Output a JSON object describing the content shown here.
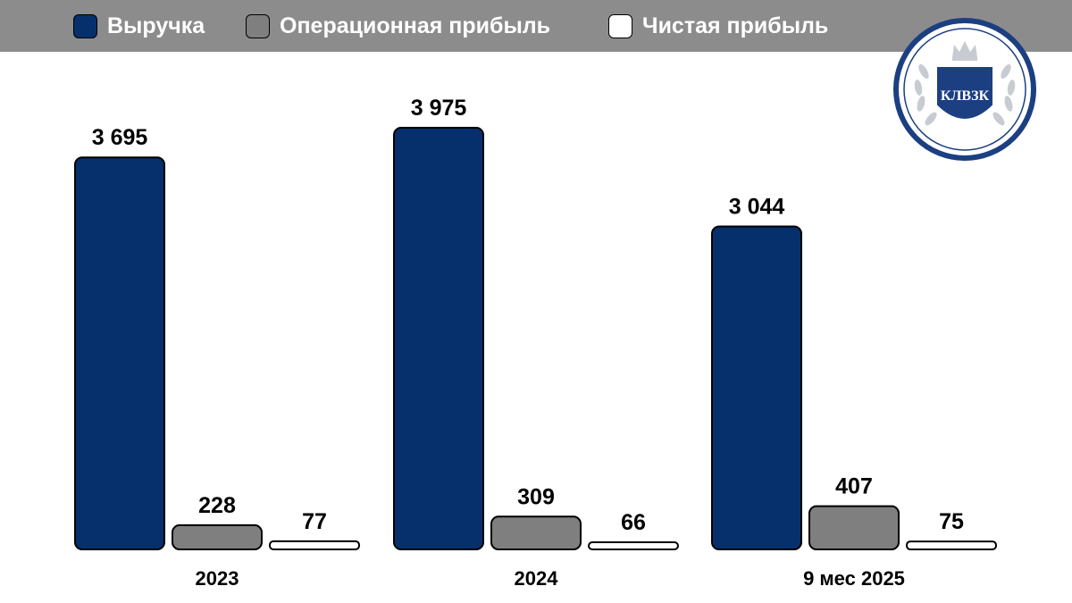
{
  "colors": {
    "legend_bar": "#8c8c8c",
    "revenue": "#06306b",
    "operating": "#7f7f7f",
    "net": "#ffffff",
    "logo_blue": "#1c3f82"
  },
  "logo": {
    "text": "КЛВЗК",
    "icon": "crown-laurel-shield-icon"
  },
  "chart_data": {
    "type": "bar",
    "title": "",
    "xlabel": "",
    "ylabel": "",
    "categories": [
      "2023",
      "2024",
      "9 мес 2025"
    ],
    "series": [
      {
        "name": "Выручка",
        "values": [
          3695,
          3975,
          3044
        ],
        "labels": [
          "3 695",
          "3 975",
          "3 044"
        ]
      },
      {
        "name": "Операционная прибыль",
        "values": [
          228,
          309,
          407
        ],
        "labels": [
          "228",
          "309",
          "407"
        ]
      },
      {
        "name": "Чистая прибыль",
        "values": [
          77,
          66,
          75
        ],
        "labels": [
          "77",
          "66",
          "75"
        ]
      }
    ],
    "ylim": [
      0,
      3975
    ],
    "grid": false,
    "legend": "top"
  }
}
